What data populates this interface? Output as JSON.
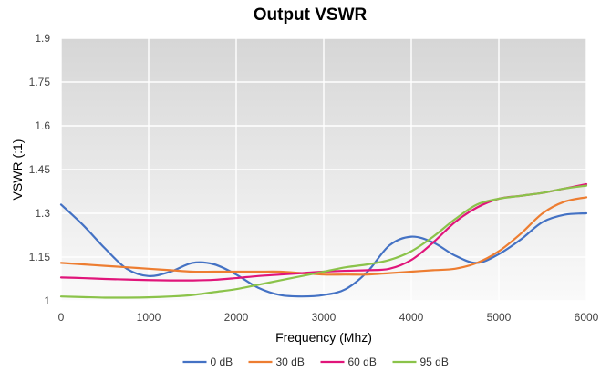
{
  "chart_data": {
    "type": "line",
    "title": "Output VSWR",
    "xlabel": "Frequency (Mhz)",
    "ylabel": "VSWR (:1)",
    "xlim": [
      0,
      6000
    ],
    "ylim": [
      1,
      1.9
    ],
    "x_ticks": [
      "0",
      "1000",
      "2000",
      "3000",
      "4000",
      "5000",
      "6000"
    ],
    "y_ticks": [
      "1",
      "1.15",
      "1.3",
      "1.45",
      "1.6",
      "1.75",
      "1.9"
    ],
    "grid": true,
    "legend_position": "bottom",
    "x": [
      0,
      250,
      500,
      750,
      1000,
      1250,
      1500,
      1750,
      2000,
      2250,
      2500,
      2750,
      3000,
      3250,
      3500,
      3750,
      4000,
      4250,
      4500,
      4750,
      5000,
      5250,
      5500,
      5750,
      6000
    ],
    "series": [
      {
        "name": "0 dB",
        "color": "#4472C4",
        "values": [
          1.33,
          1.26,
          1.18,
          1.11,
          1.085,
          1.1,
          1.13,
          1.125,
          1.09,
          1.045,
          1.02,
          1.015,
          1.02,
          1.04,
          1.1,
          1.19,
          1.22,
          1.2,
          1.155,
          1.13,
          1.16,
          1.21,
          1.27,
          1.295,
          1.3
        ]
      },
      {
        "name": "30 dB",
        "color": "#ED7D31",
        "values": [
          1.13,
          1.125,
          1.12,
          1.115,
          1.11,
          1.105,
          1.1,
          1.1,
          1.1,
          1.1,
          1.1,
          1.095,
          1.09,
          1.09,
          1.09,
          1.095,
          1.1,
          1.105,
          1.11,
          1.13,
          1.17,
          1.23,
          1.3,
          1.34,
          1.355
        ]
      },
      {
        "name": "60 dB",
        "color": "#E0157A",
        "values": [
          1.08,
          1.078,
          1.075,
          1.073,
          1.071,
          1.07,
          1.07,
          1.072,
          1.078,
          1.085,
          1.09,
          1.095,
          1.1,
          1.103,
          1.105,
          1.11,
          1.14,
          1.2,
          1.27,
          1.32,
          1.35,
          1.36,
          1.37,
          1.385,
          1.4
        ]
      },
      {
        "name": "95 dB",
        "color": "#8BC34A",
        "values": [
          1.015,
          1.013,
          1.011,
          1.011,
          1.012,
          1.015,
          1.02,
          1.03,
          1.04,
          1.055,
          1.07,
          1.085,
          1.1,
          1.115,
          1.125,
          1.14,
          1.17,
          1.22,
          1.28,
          1.33,
          1.35,
          1.36,
          1.37,
          1.385,
          1.395
        ]
      }
    ]
  }
}
